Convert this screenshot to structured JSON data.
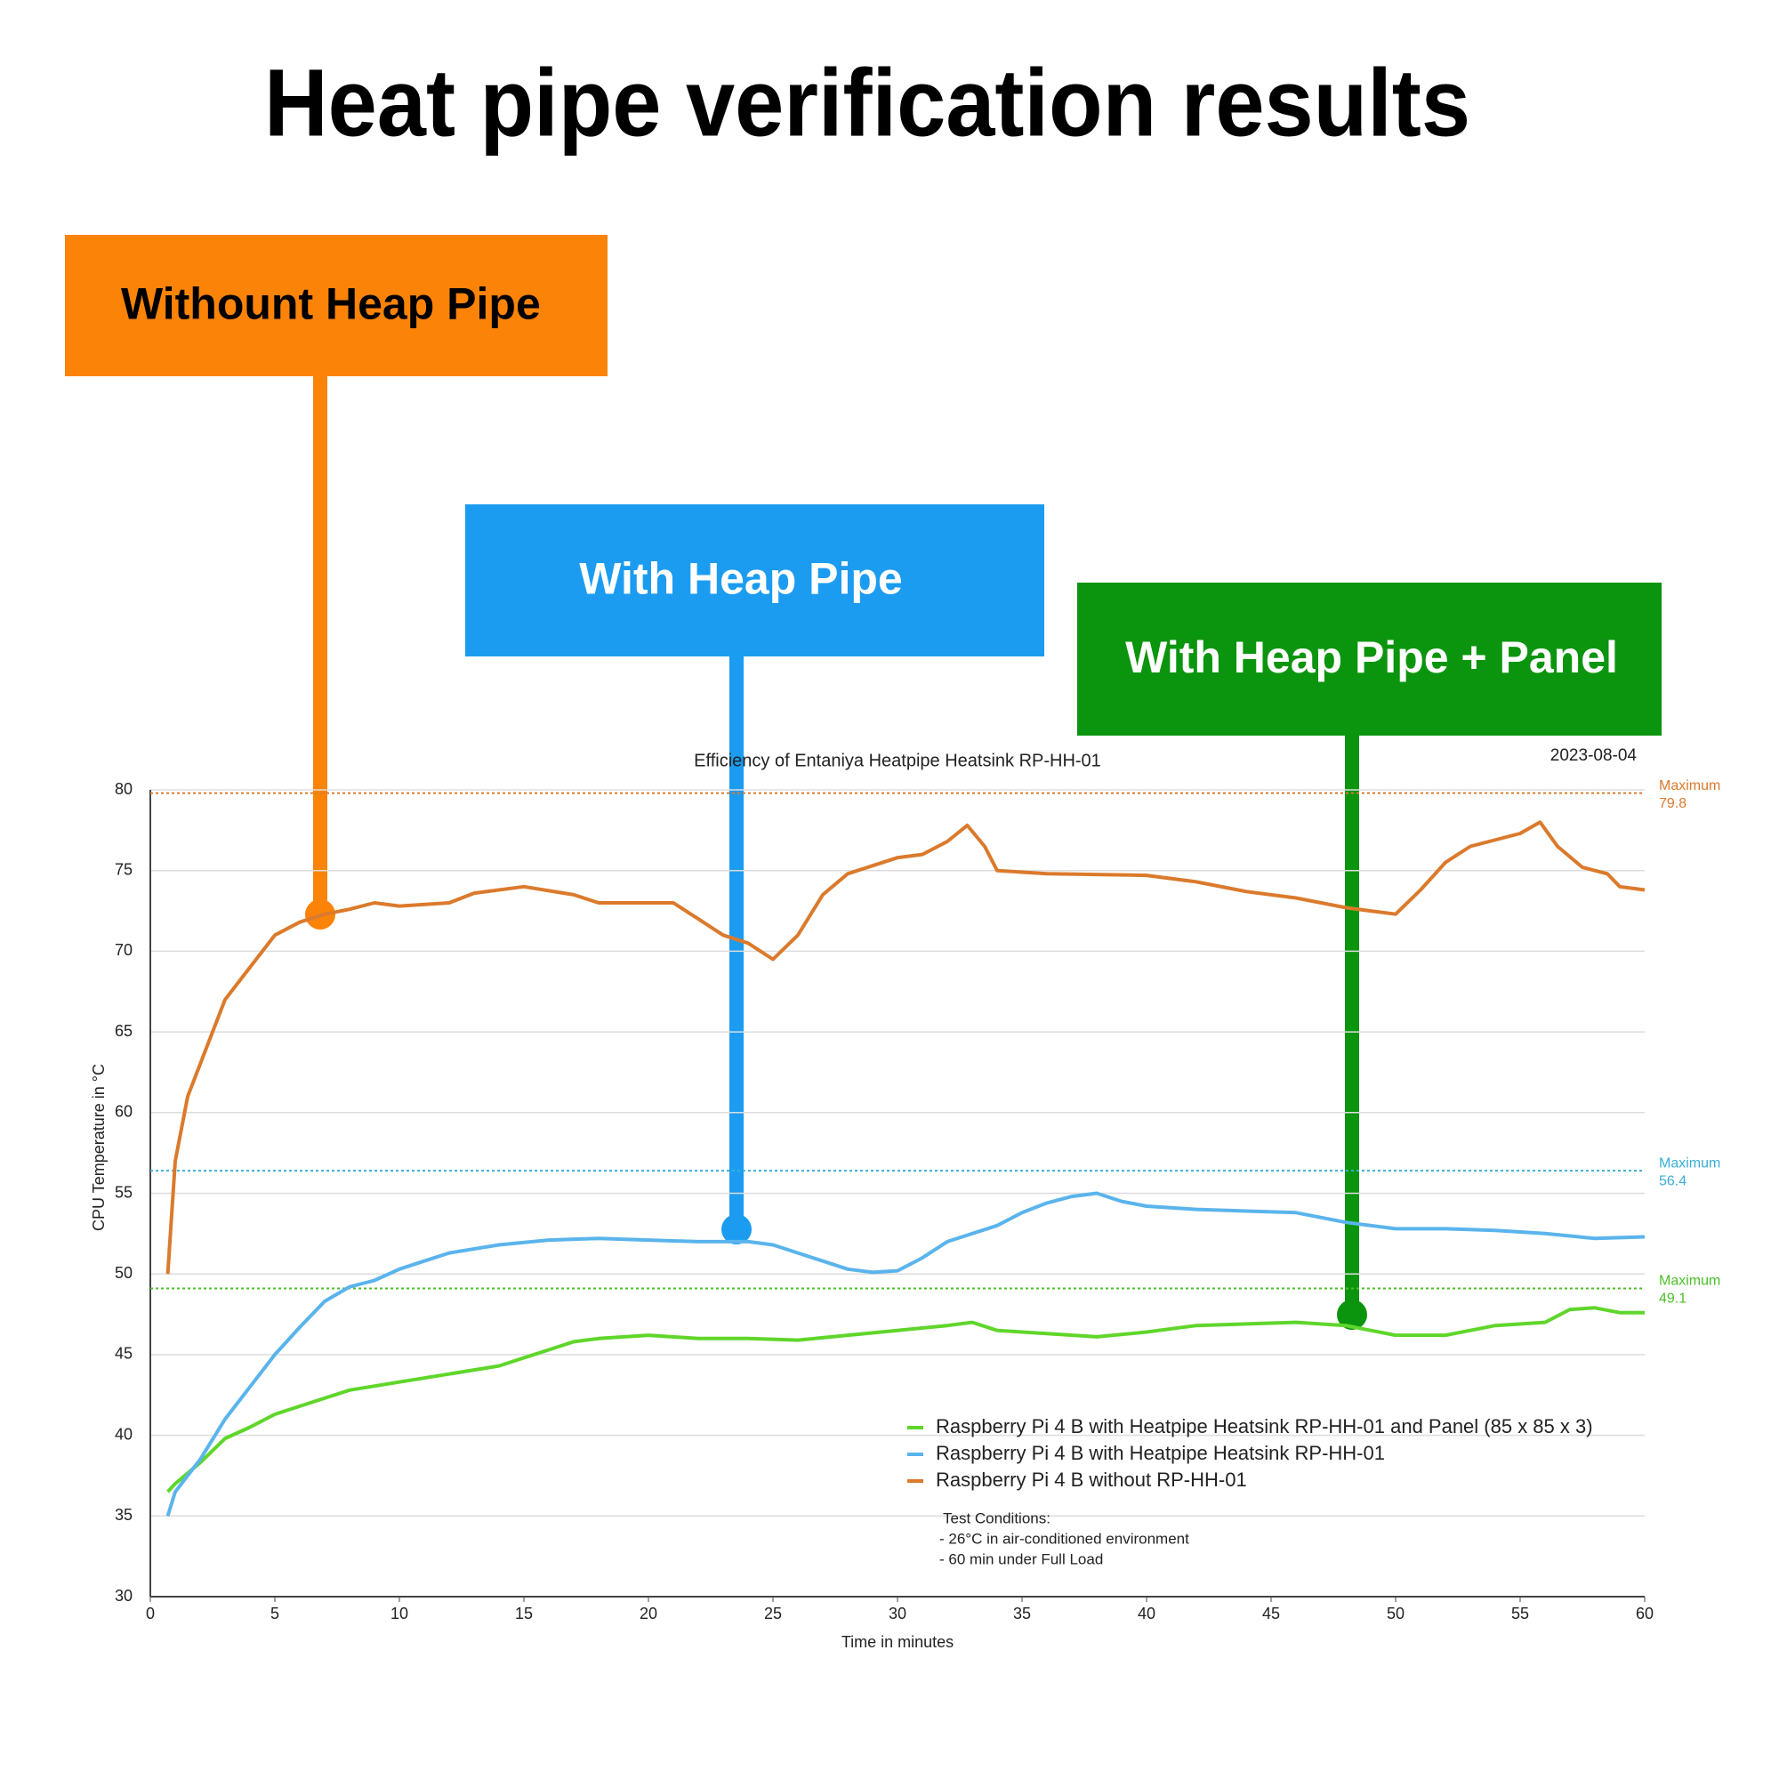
{
  "header": {
    "title": "Heat pipe verification results"
  },
  "callouts": [
    {
      "label": "Withount Heap Pipe",
      "color": "#fb8308"
    },
    {
      "label": "With Heap Pipe",
      "color": "#1b9cf0"
    },
    {
      "label": "With Heap Pipe + Panel",
      "color": "#0b950e"
    }
  ],
  "chart_data": {
    "type": "line",
    "title": "Efficiency of Entaniya Heatpipe Heatsink RP-HH-01",
    "date": "2023-08-04",
    "xlabel": "Time in minutes",
    "ylabel": "CPU Temperature in °C",
    "xlim": [
      0,
      60
    ],
    "xticks": [
      0,
      5,
      10,
      15,
      20,
      25,
      30,
      35,
      40,
      45,
      50,
      55,
      60
    ],
    "ylim": [
      30,
      80
    ],
    "yticks": [
      30,
      35,
      40,
      45,
      50,
      55,
      60,
      65,
      70,
      75,
      80
    ],
    "grid": true,
    "legend": "lower right",
    "series": [
      {
        "name": "Raspberry Pi 4 B with Heatpipe Heatsink RP-HH-01 and Panel (85 x 85 x 3)",
        "color": "#5fd62a",
        "x": [
          0.7,
          1,
          2,
          3,
          4,
          5,
          6,
          7,
          8,
          10,
          12,
          14,
          15,
          16,
          17,
          18,
          20,
          22,
          24,
          26,
          28,
          30,
          32,
          33,
          34,
          36,
          38,
          40,
          42,
          44,
          46,
          48,
          49,
          50,
          52,
          53,
          54,
          56,
          57,
          58,
          59,
          60
        ],
        "values": [
          36.5,
          37,
          38.3,
          39.8,
          40.5,
          41.3,
          41.8,
          42.3,
          42.8,
          43.3,
          43.8,
          44.3,
          44.8,
          45.3,
          45.8,
          46,
          46.2,
          46,
          46,
          45.9,
          46.2,
          46.5,
          46.8,
          47,
          46.5,
          46.3,
          46.1,
          46.4,
          46.8,
          46.9,
          47,
          46.8,
          46.5,
          46.2,
          46.2,
          46.5,
          46.8,
          47,
          47.8,
          47.9,
          47.6,
          47.6
        ]
      },
      {
        "name": "Raspberry Pi 4 B with Heatpipe Heatsink RP-HH-01",
        "color": "#5ab4ec",
        "x": [
          0.7,
          1,
          2,
          3,
          4,
          5,
          6,
          7,
          8,
          9,
          10,
          11,
          12,
          14,
          16,
          18,
          20,
          22,
          24,
          25,
          26,
          27,
          28,
          29,
          30,
          31,
          32,
          34,
          35,
          36,
          37,
          38,
          39,
          40,
          42,
          44,
          46,
          48,
          50,
          52,
          54,
          56,
          58,
          60
        ],
        "values": [
          35,
          36.5,
          38.5,
          41,
          43,
          45,
          46.7,
          48.3,
          49.2,
          49.6,
          50.3,
          50.8,
          51.3,
          51.8,
          52.1,
          52.2,
          52.1,
          52,
          52,
          51.8,
          51.3,
          50.8,
          50.3,
          50.1,
          50.2,
          51,
          52,
          53,
          53.8,
          54.4,
          54.8,
          55,
          54.5,
          54.2,
          54,
          53.9,
          53.8,
          53.2,
          52.8,
          52.8,
          52.7,
          52.5,
          52.2,
          52.3
        ]
      },
      {
        "name": "Raspberry Pi 4 B without RP-HH-01",
        "color": "#db7a2c",
        "x": [
          0.7,
          1,
          1.5,
          2,
          3,
          4,
          5,
          6,
          7,
          8,
          9,
          10,
          12,
          13,
          15,
          17,
          18,
          20,
          21,
          22,
          23,
          24,
          25,
          26,
          27,
          28,
          30,
          31,
          32,
          32.8,
          33.5,
          34,
          36,
          40,
          42,
          44,
          46,
          48,
          49,
          50,
          51,
          52,
          53,
          55,
          55.8,
          56.5,
          57.5,
          58.5,
          59,
          60
        ],
        "values": [
          50,
          57,
          61,
          63,
          67,
          69,
          71,
          71.8,
          72.3,
          72.6,
          73,
          72.8,
          73,
          73.6,
          74,
          73.5,
          73,
          73,
          73,
          72,
          71,
          70.5,
          69.5,
          71,
          73.5,
          74.8,
          75.8,
          76,
          76.8,
          77.8,
          76.5,
          75,
          74.8,
          74.7,
          74.3,
          73.7,
          73.3,
          72.7,
          72.5,
          72.3,
          73.8,
          75.5,
          76.5,
          77.3,
          78,
          76.5,
          75.2,
          74.8,
          74,
          73.8
        ]
      }
    ],
    "max_lines": [
      {
        "label": "Maximum",
        "value": 79.8,
        "color": "#db7a2c"
      },
      {
        "label": "Maximum",
        "value": 56.4,
        "color": "#3aaed6"
      },
      {
        "label": "Maximum",
        "value": 49.1,
        "color": "#4cbf2a"
      }
    ],
    "notes": [
      "Test Conditions:",
      "- 26°C in air-conditioned environment",
      "- 60 min under Full Load"
    ]
  }
}
